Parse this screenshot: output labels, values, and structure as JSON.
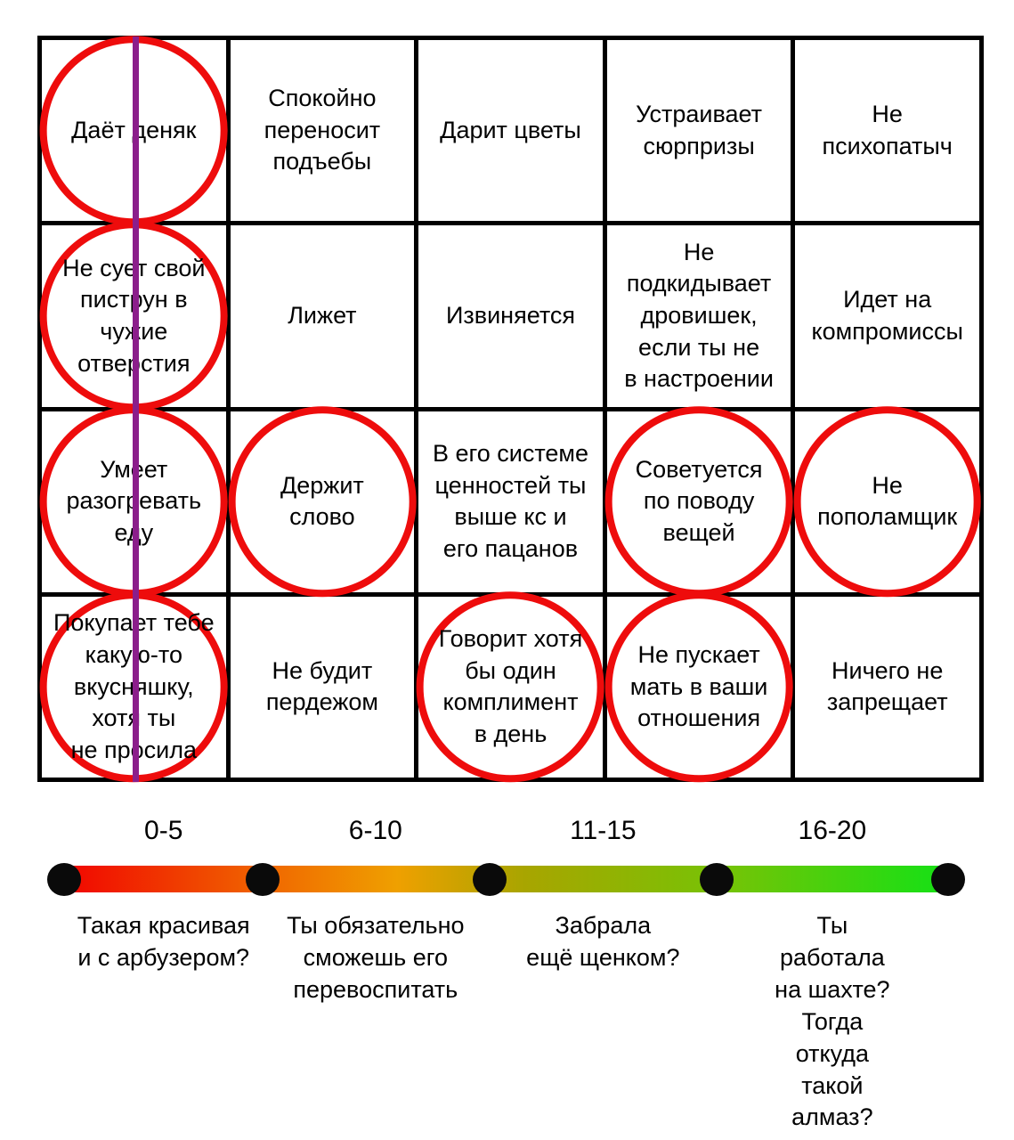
{
  "table": {
    "rows": [
      [
        {
          "text": "Даёт деняк",
          "circled": true
        },
        {
          "text": "Спокойно\nпереносит\nподъебы",
          "circled": false
        },
        {
          "text": "Дарит цветы",
          "circled": false
        },
        {
          "text": "Устраивает\nсюрпризы",
          "circled": false
        },
        {
          "text": "Не\nпсихопатыч",
          "circled": false
        }
      ],
      [
        {
          "text": "Не сует свой\nпиструн в\nчужие\nотверстия",
          "circled": true
        },
        {
          "text": "Лижет",
          "circled": false
        },
        {
          "text": "Извиняется",
          "circled": false
        },
        {
          "text": "Не\nподкидывает\nдровишек,\nесли ты не\nв настроении",
          "circled": false
        },
        {
          "text": "Идет на\nкомпромиссы",
          "circled": false
        }
      ],
      [
        {
          "text": "Умеет\nразогревать\nеду",
          "circled": true
        },
        {
          "text": "Держит\nслово",
          "circled": true
        },
        {
          "text": "В его системе\nценностей ты\nвыше кс и\nего пацанов",
          "circled": false
        },
        {
          "text": "Советуется\nпо поводу\nвещей",
          "circled": true
        },
        {
          "text": "Не\nпополамщик",
          "circled": true
        }
      ],
      [
        {
          "text": "Покупает тебе\nкакую-то\nвкусняшку,\nхотя ты\nне просила",
          "circled": true
        },
        {
          "text": "Не будит\nпердежом",
          "circled": false
        },
        {
          "text": "Говорит хотя\nбы один\nкомплимент\nв день",
          "circled": true
        },
        {
          "text": "Не пускает\nмать в ваши\nотношения",
          "circled": true
        },
        {
          "text": "Ничего не\nзапрещает",
          "circled": false
        }
      ]
    ]
  },
  "scale": {
    "segments": [
      {
        "range": "0-5",
        "caption": "Такая красивая\nи с арбузером?"
      },
      {
        "range": "6-10",
        "caption": "Ты обязательно\nсможешь его\nперевоспитать"
      },
      {
        "range": "11-15",
        "caption": "Забрала\nещё щенком?"
      },
      {
        "range": "16-20",
        "caption": "Ты работала\nна шахте? Тогда\nоткуда такой\nалмаз?"
      }
    ],
    "dot_positions_pct": [
      1.4,
      23.2,
      48.1,
      73.1,
      98.5
    ],
    "label_positions_pct": [
      12.3,
      35.6,
      60.6,
      85.8
    ]
  },
  "colors": {
    "circle_mark": "#ee0c0c",
    "vertical_line": "#8b1e8b",
    "grid_line": "#000000",
    "dot": "#0a0a0a",
    "gradient_stops": [
      "#f10000 0%",
      "#f06800 24%",
      "#efa000 38%",
      "#a8a500 52%",
      "#76c306 74%",
      "#1ede14 96%",
      "#16e016 100%"
    ]
  }
}
